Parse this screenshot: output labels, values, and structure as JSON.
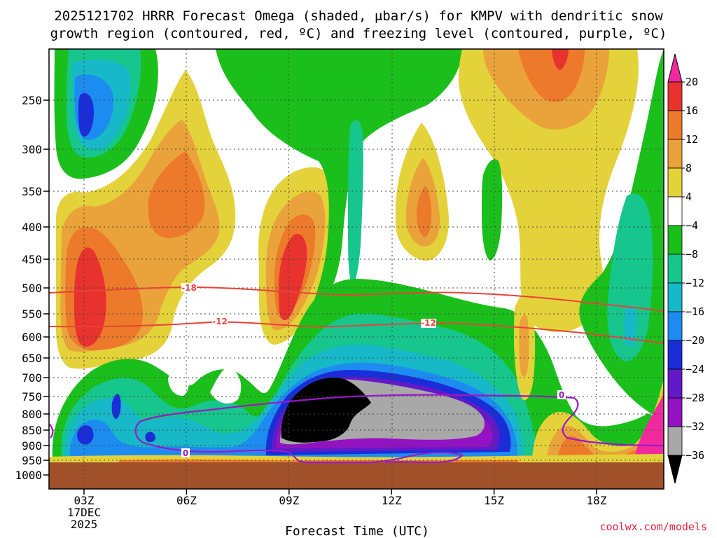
{
  "chart_data": {
    "type": "heatmap",
    "title_lines": [
      "2025121702 HRRR Forecast Omega (shaded, μbar/s) for KMPV with dendritic snow",
      "growth region (contoured, red, ºC) and freezing level (contoured, purple, ºC)"
    ],
    "xlabel": "Forecast Time (UTC)",
    "x_ticks": [
      "03Z",
      "06Z",
      "09Z",
      "12Z",
      "15Z",
      "18Z"
    ],
    "x_tick_date": [
      "17DEC",
      "2025"
    ],
    "x_range_hours_utc": [
      2,
      20
    ],
    "ylabel": "",
    "y_ticks": [
      250,
      300,
      350,
      400,
      450,
      500,
      550,
      600,
      650,
      700,
      750,
      800,
      850,
      900,
      950,
      1000
    ],
    "y_range_hpa": [
      200,
      1000
    ],
    "y_grid": true,
    "x_grid": true,
    "colorbar": {
      "labels": [
        "20",
        "16",
        "12",
        "8",
        "4",
        "−4",
        "−8",
        "−12",
        "−16",
        "−20",
        "−24",
        "−28",
        "−32",
        "−36"
      ],
      "colors": [
        "#f02a9e",
        "#e8322e",
        "#ec7a2a",
        "#eaa33a",
        "#e4d23a",
        "#ffffff",
        "#1bbf1b",
        "#16c68c",
        "#17b8c8",
        "#1d8cf0",
        "#1a2dd8",
        "#6419c8",
        "#9412c4",
        "#a8a8a8",
        "#000000"
      ]
    },
    "dgz_contours": [
      {
        "label": "-18",
        "color": "#e8423a"
      },
      {
        "label": "-12",
        "color": "#e8423a"
      }
    ],
    "freezing_level_contour": {
      "label": "0",
      "color": "#9a18c8"
    },
    "ground_color": "#a0512a",
    "credit": "coolwx.com/models"
  }
}
